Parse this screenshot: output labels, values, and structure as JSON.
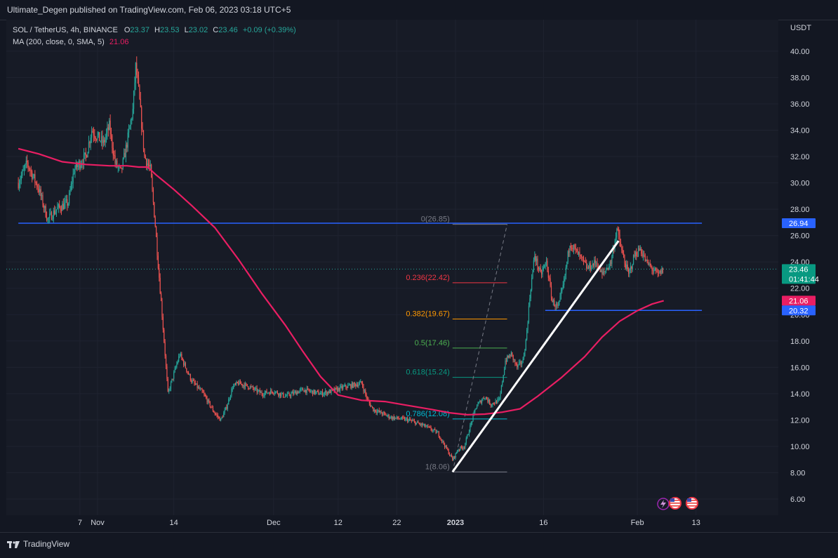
{
  "header": {
    "publisher": "Ultimate_Degen published on TradingView.com, Feb 06, 2023 03:18 UTC+5"
  },
  "legend": {
    "symbol": "SOL / TetherUS, 4h, BINANCE",
    "open_label": "O",
    "open": "23.37",
    "high_label": "H",
    "high": "23.53",
    "low_label": "L",
    "low": "23.02",
    "close_label": "C",
    "close": "23.46",
    "change": "+0.09 (+0.39%)",
    "ma_label": "MA (200, close, 0, SMA, 5)",
    "ma_value": "21.06"
  },
  "currency": "USDT",
  "footer": {
    "brand": "TradingView"
  },
  "colors": {
    "up": "#26a69a",
    "down": "#ef5350",
    "ma": "#e91e63",
    "hline": "#2962ff",
    "trend": "#ffffff",
    "background": "#171b26"
  },
  "chart_data": {
    "type": "candlestick",
    "symbol": "SOL / TetherUS",
    "interval": "4h",
    "ylim": [
      5,
      41
    ],
    "y_ticks": [
      6,
      8,
      10,
      12,
      14,
      16,
      18,
      20,
      22,
      24,
      26,
      28,
      30,
      32,
      34,
      36,
      38,
      40
    ],
    "y_tick_labels": [
      "6.00",
      "8.00",
      "10.00",
      "12.00",
      "14.00",
      "16.00",
      "18.00",
      "20.00",
      "22.00",
      "24.00",
      "26.00",
      "28.00",
      "30.00",
      "32.00",
      "34.00",
      "36.00",
      "38.00",
      "40.00"
    ],
    "x_ticks": [
      {
        "label": "7",
        "x": -3
      },
      {
        "label": "Nov",
        "x": 0
      },
      {
        "label": "14",
        "x": 13
      },
      {
        "label": "Dec",
        "x": 30
      },
      {
        "label": "12",
        "x": 41
      },
      {
        "label": "22",
        "x": 51
      },
      {
        "label": "2023",
        "x": 61
      },
      {
        "label": "16",
        "x": 76
      },
      {
        "label": "Feb",
        "x": 92
      },
      {
        "label": "13",
        "x": 102
      }
    ],
    "price_path": [
      [
        -13.5,
        30.0
      ],
      [
        -12,
        31.5
      ],
      [
        -10,
        29.5
      ],
      [
        -8.5,
        27.2
      ],
      [
        -7,
        28.0
      ],
      [
        -5,
        28.5
      ],
      [
        -4,
        31.0
      ],
      [
        -2,
        32.0
      ],
      [
        -1,
        34.0
      ],
      [
        1,
        33.0
      ],
      [
        2,
        34.3
      ],
      [
        3,
        31.5
      ],
      [
        4,
        30.8
      ],
      [
        5,
        33.0
      ],
      [
        6,
        35.5
      ],
      [
        6.5,
        38.8
      ],
      [
        7,
        37.0
      ],
      [
        7.5,
        34.5
      ],
      [
        8,
        32.0
      ],
      [
        9,
        31.0
      ],
      [
        9.8,
        27.0
      ],
      [
        10.3,
        24.0
      ],
      [
        11,
        20.0
      ],
      [
        12,
        14.0
      ],
      [
        13,
        15.5
      ],
      [
        14,
        17.0
      ],
      [
        16,
        15.0
      ],
      [
        18,
        14.0
      ],
      [
        20,
        12.5
      ],
      [
        21,
        12.0
      ],
      [
        22,
        13.0
      ],
      [
        23,
        14.5
      ],
      [
        24,
        14.8
      ],
      [
        26,
        14.5
      ],
      [
        28,
        14.0
      ],
      [
        30,
        14.2
      ],
      [
        32,
        13.8
      ],
      [
        35,
        14.3
      ],
      [
        38,
        14.0
      ],
      [
        40,
        14.2
      ],
      [
        42,
        14.5
      ],
      [
        45,
        14.8
      ],
      [
        46,
        13.5
      ],
      [
        47,
        12.8
      ],
      [
        50,
        12.2
      ],
      [
        53,
        12.0
      ],
      [
        56,
        11.5
      ],
      [
        58,
        11.0
      ],
      [
        59,
        10.2
      ],
      [
        60.5,
        9.0
      ],
      [
        61.5,
        9.8
      ],
      [
        62.5,
        10.0
      ],
      [
        63.5,
        11.5
      ],
      [
        64.5,
        13.0
      ],
      [
        66,
        13.8
      ],
      [
        67,
        13.2
      ],
      [
        68.5,
        13.5
      ],
      [
        69.5,
        16.5
      ],
      [
        70.5,
        17.0
      ],
      [
        71.5,
        16.0
      ],
      [
        72.5,
        16.5
      ],
      [
        73,
        18.0
      ],
      [
        73.8,
        22.0
      ],
      [
        74.5,
        24.5
      ],
      [
        75.5,
        23.0
      ],
      [
        76.5,
        24.0
      ],
      [
        77.5,
        21.0
      ],
      [
        78.5,
        20.5
      ],
      [
        79.5,
        22.5
      ],
      [
        80.5,
        25.5
      ],
      [
        82,
        24.5
      ],
      [
        83.5,
        23.5
      ],
      [
        85,
        24.0
      ],
      [
        86,
        23.0
      ],
      [
        87.5,
        24.0
      ],
      [
        88.5,
        26.5
      ],
      [
        89.5,
        24.5
      ],
      [
        90.5,
        23.0
      ],
      [
        91.5,
        24.5
      ],
      [
        92.5,
        25.0
      ],
      [
        93.5,
        24.0
      ],
      [
        94.5,
        23.5
      ],
      [
        95.5,
        23.0
      ],
      [
        96.5,
        23.46
      ]
    ],
    "ma_200": [
      [
        -13.5,
        32.6
      ],
      [
        -10,
        32.2
      ],
      [
        -6,
        31.6
      ],
      [
        -2,
        31.4
      ],
      [
        2,
        31.3
      ],
      [
        5,
        31.3
      ],
      [
        7,
        31.2
      ],
      [
        8.5,
        31.2
      ],
      [
        10,
        30.6
      ],
      [
        13,
        29.5
      ],
      [
        16,
        28.3
      ],
      [
        20,
        26.6
      ],
      [
        24,
        24.2
      ],
      [
        28,
        21.6
      ],
      [
        32,
        19.2
      ],
      [
        35,
        17.2
      ],
      [
        38,
        15.3
      ],
      [
        41,
        13.9
      ],
      [
        45,
        13.5
      ],
      [
        49,
        13.4
      ],
      [
        53,
        13.1
      ],
      [
        57,
        12.8
      ],
      [
        60,
        12.55
      ],
      [
        63,
        12.4
      ],
      [
        66,
        12.45
      ],
      [
        69,
        12.6
      ],
      [
        72,
        12.85
      ],
      [
        75,
        13.8
      ],
      [
        79,
        15.2
      ],
      [
        83,
        16.8
      ],
      [
        86,
        18.3
      ],
      [
        89,
        19.5
      ],
      [
        92,
        20.3
      ],
      [
        94.5,
        20.8
      ],
      [
        96.5,
        21.06
      ]
    ],
    "horizontal_lines": [
      {
        "price": 26.94,
        "label": "26.94",
        "from_x": -13.5,
        "to_x": 103
      },
      {
        "price": 20.32,
        "label": "20.32",
        "from_x": 76.3,
        "to_x": 103
      }
    ],
    "trend_line": {
      "from": [
        60.5,
        8.06
      ],
      "to": [
        88.8,
        25.6
      ]
    },
    "fibonacci": {
      "from_x": 60.5,
      "to_x": 69.8,
      "levels": [
        {
          "ratio": "0",
          "price": 26.85,
          "label": "0(26.85)",
          "color": "#787b86"
        },
        {
          "ratio": "0.236",
          "price": 22.42,
          "label": "0.236(22.42)",
          "color": "#f23645"
        },
        {
          "ratio": "0.382",
          "price": 19.67,
          "label": "0.382(19.67)",
          "color": "#ff9800"
        },
        {
          "ratio": "0.5",
          "price": 17.46,
          "label": "0.5(17.46)",
          "color": "#4caf50"
        },
        {
          "ratio": "0.618",
          "price": 15.24,
          "label": "0.618(15.24)",
          "color": "#089981"
        },
        {
          "ratio": "0.786",
          "price": 12.08,
          "label": "0.786(12.08)",
          "color": "#00bcd4"
        },
        {
          "ratio": "1",
          "price": 8.06,
          "label": "1(8.06)",
          "color": "#787b86"
        }
      ],
      "diagonal": {
        "from": [
          60.5,
          8.06
        ],
        "to": [
          69.8,
          26.85
        ]
      }
    },
    "last_price": {
      "price": 23.46,
      "label": "23.46",
      "countdown": "01:41:44"
    },
    "ma_price": {
      "price": 21.06,
      "label": "21.06"
    },
    "event_icons": [
      "lightning-icon",
      "us-flag-icon",
      "us-flag-icon"
    ]
  }
}
